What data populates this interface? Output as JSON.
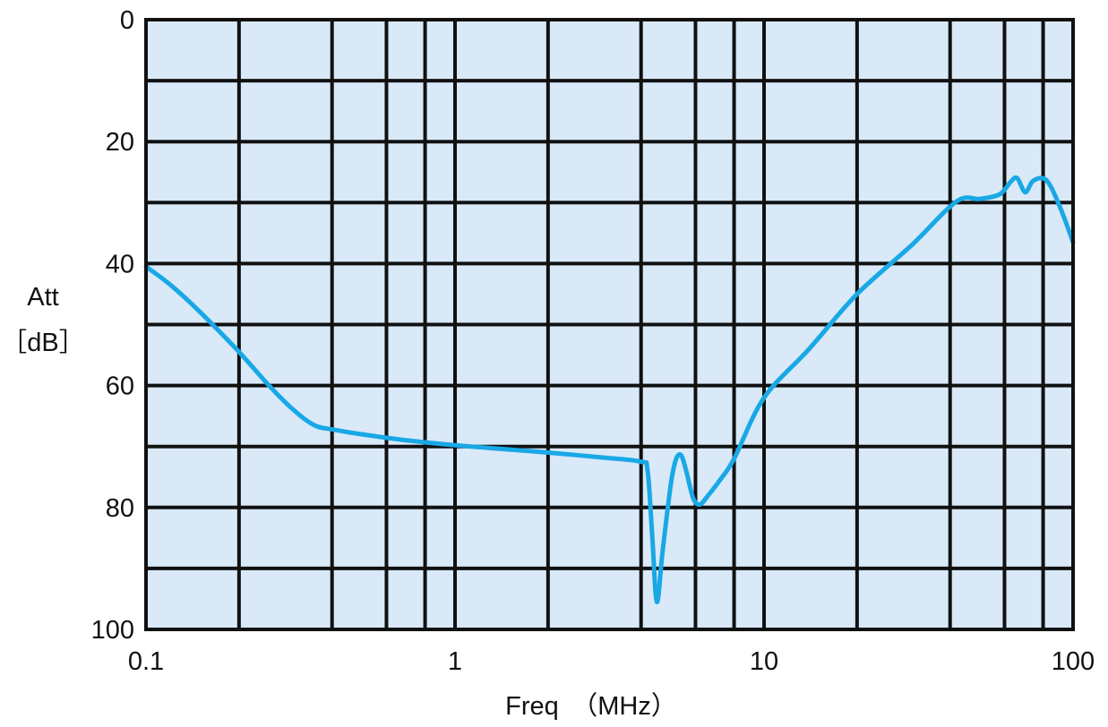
{
  "chart_data": {
    "type": "line",
    "title": "",
    "xlabel": "Freq　（MHz）",
    "ylabel_line1": "Att",
    "ylabel_line2": "［dB］",
    "x_scale": "log",
    "xlim": [
      0.1,
      100
    ],
    "ylim": [
      0,
      100
    ],
    "y_inverted": true,
    "grid": true,
    "x_ticks": [
      0.1,
      1,
      10,
      100
    ],
    "x_tick_labels": [
      "0.1",
      "1",
      "10",
      "100"
    ],
    "y_ticks": [
      0,
      20,
      40,
      60,
      80,
      100
    ],
    "y_tick_labels": [
      "0",
      "20",
      "40",
      "60",
      "80",
      "100"
    ],
    "x_gridlines": [
      0.2,
      0.4,
      0.6,
      0.8,
      1,
      2,
      4,
      6,
      8,
      10,
      20,
      40,
      60,
      80
    ],
    "y_gridlines": [
      10,
      20,
      30,
      40,
      50,
      60,
      70,
      80,
      90
    ],
    "colors": {
      "plot_background": "#d9e9f8",
      "grid": "#111111",
      "line": "#19a8e6"
    },
    "series": [
      {
        "x": [
          0.1,
          0.12,
          0.15,
          0.2,
          0.25,
          0.3,
          0.35,
          0.4,
          0.5,
          0.7,
          1.0,
          1.5,
          2.0,
          3.0,
          4.0,
          4.2,
          4.35,
          4.5,
          4.7,
          5.0,
          5.2,
          5.4,
          5.6,
          5.9,
          6.2,
          6.6,
          7.2,
          8.0,
          10.0,
          14.0,
          20.0,
          30.0,
          42.0,
          50.0,
          58.0,
          63.0,
          66.0,
          70.0,
          74.0,
          80.0,
          85.0,
          92.0,
          100.0
        ],
        "y": [
          40.5,
          43.5,
          48,
          54.5,
          60,
          64,
          66.5,
          67.2,
          68,
          69,
          69.8,
          70.5,
          71,
          71.8,
          72.5,
          74,
          85,
          95.5,
          87,
          76,
          72,
          71.5,
          74,
          78.5,
          79.5,
          78,
          75.5,
          72,
          62,
          54,
          45,
          37,
          29.8,
          29.4,
          28.6,
          26.5,
          26,
          28.3,
          26.5,
          26,
          27.5,
          31.5,
          36.5
        ]
      }
    ]
  }
}
